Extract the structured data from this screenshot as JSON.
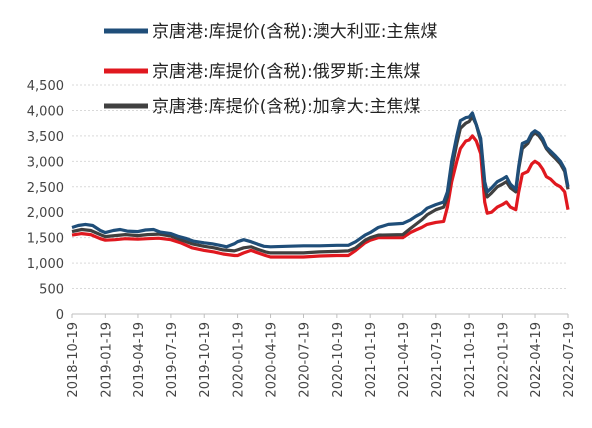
{
  "chart_data": {
    "type": "line",
    "title": "",
    "xlabel": "",
    "ylabel": "",
    "ylim": [
      0,
      4500
    ],
    "yticks": [
      "0",
      "500",
      "1,000",
      "1,500",
      "2,000",
      "2,500",
      "3,000",
      "3,500",
      "4,000",
      "4,500"
    ],
    "xticks": [
      "2018-10-19",
      "2019-01-19",
      "2019-04-19",
      "2019-07-19",
      "2019-10-19",
      "2020-01-19",
      "2020-04-19",
      "2020-07-19",
      "2020-10-19",
      "2021-01-19",
      "2021-04-19",
      "2021-07-19",
      "2021-10-19",
      "2022-01-19",
      "2022-04-19",
      "2022-07-19"
    ],
    "grid": true,
    "legend_position": "top",
    "series": [
      {
        "name": "京唐港:库提价(含税):澳大利亚:主焦煤",
        "color": "#1F4E79",
        "points": [
          [
            "2018-10-19",
            1700
          ],
          [
            "2018-11-05",
            1740
          ],
          [
            "2018-11-25",
            1760
          ],
          [
            "2018-12-15",
            1740
          ],
          [
            "2019-01-05",
            1640
          ],
          [
            "2019-01-19",
            1600
          ],
          [
            "2019-02-10",
            1640
          ],
          [
            "2019-03-01",
            1660
          ],
          [
            "2019-03-20",
            1630
          ],
          [
            "2019-04-19",
            1620
          ],
          [
            "2019-05-10",
            1650
          ],
          [
            "2019-06-01",
            1660
          ],
          [
            "2019-06-20",
            1610
          ],
          [
            "2019-07-19",
            1580
          ],
          [
            "2019-08-10",
            1520
          ],
          [
            "2019-09-01",
            1480
          ],
          [
            "2019-09-20",
            1430
          ],
          [
            "2019-10-19",
            1400
          ],
          [
            "2019-11-10",
            1380
          ],
          [
            "2019-12-01",
            1350
          ],
          [
            "2019-12-20",
            1320
          ],
          [
            "2020-01-10",
            1380
          ],
          [
            "2020-01-19",
            1420
          ],
          [
            "2020-02-05",
            1460
          ],
          [
            "2020-02-25",
            1420
          ],
          [
            "2020-03-15",
            1370
          ],
          [
            "2020-04-01",
            1330
          ],
          [
            "2020-04-19",
            1320
          ],
          [
            "2020-06-01",
            1330
          ],
          [
            "2020-07-19",
            1340
          ],
          [
            "2020-09-01",
            1340
          ],
          [
            "2020-10-19",
            1350
          ],
          [
            "2020-11-20",
            1350
          ],
          [
            "2020-12-10",
            1420
          ],
          [
            "2021-01-05",
            1550
          ],
          [
            "2021-01-19",
            1600
          ],
          [
            "2021-02-10",
            1700
          ],
          [
            "2021-03-10",
            1760
          ],
          [
            "2021-04-19",
            1780
          ],
          [
            "2021-05-10",
            1850
          ],
          [
            "2021-05-25",
            1920
          ],
          [
            "2021-06-10",
            1980
          ],
          [
            "2021-06-25",
            2080
          ],
          [
            "2021-07-19",
            2150
          ],
          [
            "2021-08-10",
            2200
          ],
          [
            "2021-08-20",
            2400
          ],
          [
            "2021-09-01",
            3000
          ],
          [
            "2021-09-15",
            3500
          ],
          [
            "2021-09-25",
            3800
          ],
          [
            "2021-10-10",
            3860
          ],
          [
            "2021-10-19",
            3870
          ],
          [
            "2021-10-28",
            3950
          ],
          [
            "2021-11-08",
            3720
          ],
          [
            "2021-11-20",
            3450
          ],
          [
            "2021-12-01",
            2600
          ],
          [
            "2021-12-08",
            2400
          ],
          [
            "2021-12-20",
            2480
          ],
          [
            "2022-01-05",
            2600
          ],
          [
            "2022-01-19",
            2650
          ],
          [
            "2022-01-30",
            2700
          ],
          [
            "2022-02-10",
            2550
          ],
          [
            "2022-02-25",
            2450
          ],
          [
            "2022-03-05",
            2900
          ],
          [
            "2022-03-15",
            3350
          ],
          [
            "2022-03-30",
            3400
          ],
          [
            "2022-04-10",
            3550
          ],
          [
            "2022-04-19",
            3600
          ],
          [
            "2022-04-30",
            3550
          ],
          [
            "2022-05-10",
            3450
          ],
          [
            "2022-05-20",
            3280
          ],
          [
            "2022-06-01",
            3200
          ],
          [
            "2022-06-15",
            3100
          ],
          [
            "2022-06-28",
            3000
          ],
          [
            "2022-07-10",
            2850
          ],
          [
            "2022-07-19",
            2500
          ]
        ]
      },
      {
        "name": "京唐港:库提价(含税):俄罗斯:主焦煤",
        "color": "#E0181F",
        "points": [
          [
            "2018-10-19",
            1550
          ],
          [
            "2018-11-15",
            1580
          ],
          [
            "2018-12-10",
            1560
          ],
          [
            "2019-01-05",
            1480
          ],
          [
            "2019-01-19",
            1450
          ],
          [
            "2019-02-15",
            1460
          ],
          [
            "2019-03-15",
            1480
          ],
          [
            "2019-04-19",
            1470
          ],
          [
            "2019-05-15",
            1480
          ],
          [
            "2019-06-15",
            1490
          ],
          [
            "2019-07-19",
            1460
          ],
          [
            "2019-08-15",
            1400
          ],
          [
            "2019-09-15",
            1300
          ],
          [
            "2019-10-19",
            1250
          ],
          [
            "2019-11-15",
            1220
          ],
          [
            "2019-12-10",
            1180
          ],
          [
            "2020-01-10",
            1150
          ],
          [
            "2020-01-19",
            1150
          ],
          [
            "2020-02-05",
            1200
          ],
          [
            "2020-02-25",
            1250
          ],
          [
            "2020-03-15",
            1200
          ],
          [
            "2020-04-05",
            1150
          ],
          [
            "2020-04-19",
            1120
          ],
          [
            "2020-06-01",
            1120
          ],
          [
            "2020-07-19",
            1120
          ],
          [
            "2020-09-01",
            1140
          ],
          [
            "2020-10-19",
            1150
          ],
          [
            "2020-11-20",
            1150
          ],
          [
            "2020-12-10",
            1250
          ],
          [
            "2021-01-05",
            1400
          ],
          [
            "2021-01-19",
            1450
          ],
          [
            "2021-02-10",
            1500
          ],
          [
            "2021-04-19",
            1500
          ],
          [
            "2021-05-10",
            1600
          ],
          [
            "2021-05-25",
            1650
          ],
          [
            "2021-06-10",
            1700
          ],
          [
            "2021-06-25",
            1760
          ],
          [
            "2021-07-19",
            1800
          ],
          [
            "2021-08-10",
            1820
          ],
          [
            "2021-08-20",
            2100
          ],
          [
            "2021-09-01",
            2600
          ],
          [
            "2021-09-15",
            3000
          ],
          [
            "2021-09-25",
            3250
          ],
          [
            "2021-10-10",
            3400
          ],
          [
            "2021-10-19",
            3420
          ],
          [
            "2021-10-28",
            3500
          ],
          [
            "2021-11-08",
            3400
          ],
          [
            "2021-11-20",
            3150
          ],
          [
            "2021-12-01",
            2200
          ],
          [
            "2021-12-08",
            1980
          ],
          [
            "2021-12-20",
            2000
          ],
          [
            "2022-01-05",
            2100
          ],
          [
            "2022-01-19",
            2150
          ],
          [
            "2022-01-30",
            2200
          ],
          [
            "2022-02-10",
            2100
          ],
          [
            "2022-02-25",
            2050
          ],
          [
            "2022-03-05",
            2400
          ],
          [
            "2022-03-15",
            2750
          ],
          [
            "2022-03-30",
            2800
          ],
          [
            "2022-04-10",
            2950
          ],
          [
            "2022-04-19",
            3000
          ],
          [
            "2022-04-30",
            2950
          ],
          [
            "2022-05-10",
            2850
          ],
          [
            "2022-05-20",
            2700
          ],
          [
            "2022-06-01",
            2650
          ],
          [
            "2022-06-15",
            2550
          ],
          [
            "2022-06-28",
            2500
          ],
          [
            "2022-07-10",
            2400
          ],
          [
            "2022-07-19",
            2050
          ]
        ]
      },
      {
        "name": "京唐港:库提价(含税):加拿大:主焦煤",
        "color": "#404040",
        "points": [
          [
            "2018-10-19",
            1620
          ],
          [
            "2018-11-15",
            1660
          ],
          [
            "2018-12-10",
            1640
          ],
          [
            "2019-01-05",
            1560
          ],
          [
            "2019-01-19",
            1520
          ],
          [
            "2019-02-15",
            1540
          ],
          [
            "2019-03-15",
            1560
          ],
          [
            "2019-04-19",
            1540
          ],
          [
            "2019-05-15",
            1560
          ],
          [
            "2019-06-15",
            1570
          ],
          [
            "2019-07-19",
            1530
          ],
          [
            "2019-08-15",
            1460
          ],
          [
            "2019-09-15",
            1380
          ],
          [
            "2019-10-19",
            1330
          ],
          [
            "2019-11-15",
            1300
          ],
          [
            "2019-12-10",
            1260
          ],
          [
            "2020-01-10",
            1240
          ],
          [
            "2020-01-19",
            1260
          ],
          [
            "2020-02-05",
            1300
          ],
          [
            "2020-02-25",
            1320
          ],
          [
            "2020-03-15",
            1270
          ],
          [
            "2020-04-05",
            1220
          ],
          [
            "2020-04-19",
            1200
          ],
          [
            "2020-06-01",
            1200
          ],
          [
            "2020-07-19",
            1200
          ],
          [
            "2020-09-01",
            1220
          ],
          [
            "2020-10-19",
            1230
          ],
          [
            "2020-11-20",
            1240
          ],
          [
            "2020-12-10",
            1300
          ],
          [
            "2021-01-05",
            1450
          ],
          [
            "2021-01-19",
            1500
          ],
          [
            "2021-02-10",
            1550
          ],
          [
            "2021-04-19",
            1560
          ],
          [
            "2021-05-10",
            1680
          ],
          [
            "2021-05-25",
            1760
          ],
          [
            "2021-06-10",
            1850
          ],
          [
            "2021-06-25",
            1950
          ],
          [
            "2021-07-19",
            2050
          ],
          [
            "2021-08-10",
            2100
          ],
          [
            "2021-08-20",
            2300
          ],
          [
            "2021-09-01",
            2850
          ],
          [
            "2021-09-15",
            3350
          ],
          [
            "2021-09-25",
            3650
          ],
          [
            "2021-10-10",
            3750
          ],
          [
            "2021-10-19",
            3780
          ],
          [
            "2021-10-28",
            3880
          ],
          [
            "2021-11-08",
            3720
          ],
          [
            "2021-11-20",
            3400
          ],
          [
            "2021-12-01",
            2500
          ],
          [
            "2021-12-08",
            2300
          ],
          [
            "2021-12-20",
            2380
          ],
          [
            "2022-01-05",
            2500
          ],
          [
            "2022-01-19",
            2550
          ],
          [
            "2022-01-30",
            2600
          ],
          [
            "2022-02-10",
            2480
          ],
          [
            "2022-02-25",
            2400
          ],
          [
            "2022-03-05",
            2850
          ],
          [
            "2022-03-15",
            3250
          ],
          [
            "2022-03-30",
            3350
          ],
          [
            "2022-04-10",
            3500
          ],
          [
            "2022-04-19",
            3560
          ],
          [
            "2022-04-30",
            3500
          ],
          [
            "2022-05-10",
            3400
          ],
          [
            "2022-05-20",
            3250
          ],
          [
            "2022-06-01",
            3150
          ],
          [
            "2022-06-15",
            3050
          ],
          [
            "2022-06-28",
            2950
          ],
          [
            "2022-07-10",
            2800
          ],
          [
            "2022-07-19",
            2450
          ]
        ]
      }
    ]
  }
}
